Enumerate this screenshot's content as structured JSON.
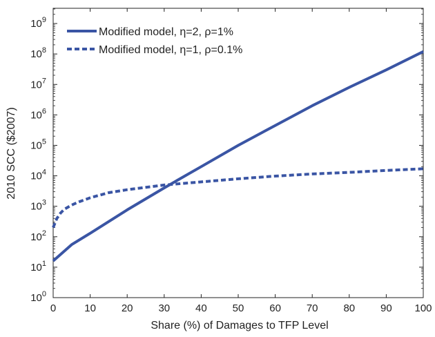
{
  "chart_data": {
    "type": "line",
    "title": "",
    "xlabel": "Share (%) of Damages to TFP Level",
    "ylabel": "2010 SCC ($2007)",
    "xlim": [
      0,
      100
    ],
    "ylim_log10": [
      0,
      9.5
    ],
    "y_scale": "log",
    "grid": false,
    "legend_position": "top-left",
    "x_ticks": [
      0,
      10,
      20,
      30,
      40,
      50,
      60,
      70,
      80,
      90,
      100
    ],
    "y_ticks": [
      {
        "base": "10",
        "exp": "0",
        "value": 1
      },
      {
        "base": "10",
        "exp": "1",
        "value": 10
      },
      {
        "base": "10",
        "exp": "2",
        "value": 100
      },
      {
        "base": "10",
        "exp": "3",
        "value": 1000
      },
      {
        "base": "10",
        "exp": "4",
        "value": 10000
      },
      {
        "base": "10",
        "exp": "5",
        "value": 100000
      },
      {
        "base": "10",
        "exp": "6",
        "value": 1000000
      },
      {
        "base": "10",
        "exp": "7",
        "value": 10000000
      },
      {
        "base": "10",
        "exp": "8",
        "value": 100000000
      },
      {
        "base": "10",
        "exp": "9",
        "value": 1000000000
      }
    ],
    "series": [
      {
        "name": "Modified model, η=2, ρ=1%",
        "style": "solid",
        "color": "#3a55a4",
        "x": [
          0,
          5,
          10,
          20,
          30,
          35,
          40,
          50,
          60,
          70,
          80,
          90,
          100
        ],
        "y": [
          16,
          55,
          130,
          760,
          4000,
          9000,
          20000,
          100000,
          450000,
          2000000,
          8000000,
          30000000,
          120000000
        ]
      },
      {
        "name": "Modified model, η=1, ρ=0.1%",
        "style": "dashed",
        "color": "#3a55a4",
        "x": [
          0,
          1,
          2,
          3,
          5,
          7,
          10,
          15,
          20,
          30,
          40,
          50,
          60,
          70,
          80,
          90,
          100
        ],
        "y": [
          200,
          400,
          600,
          800,
          1100,
          1400,
          1900,
          2800,
          3500,
          5000,
          6300,
          8000,
          9800,
          11500,
          13000,
          15000,
          17000
        ]
      }
    ]
  }
}
